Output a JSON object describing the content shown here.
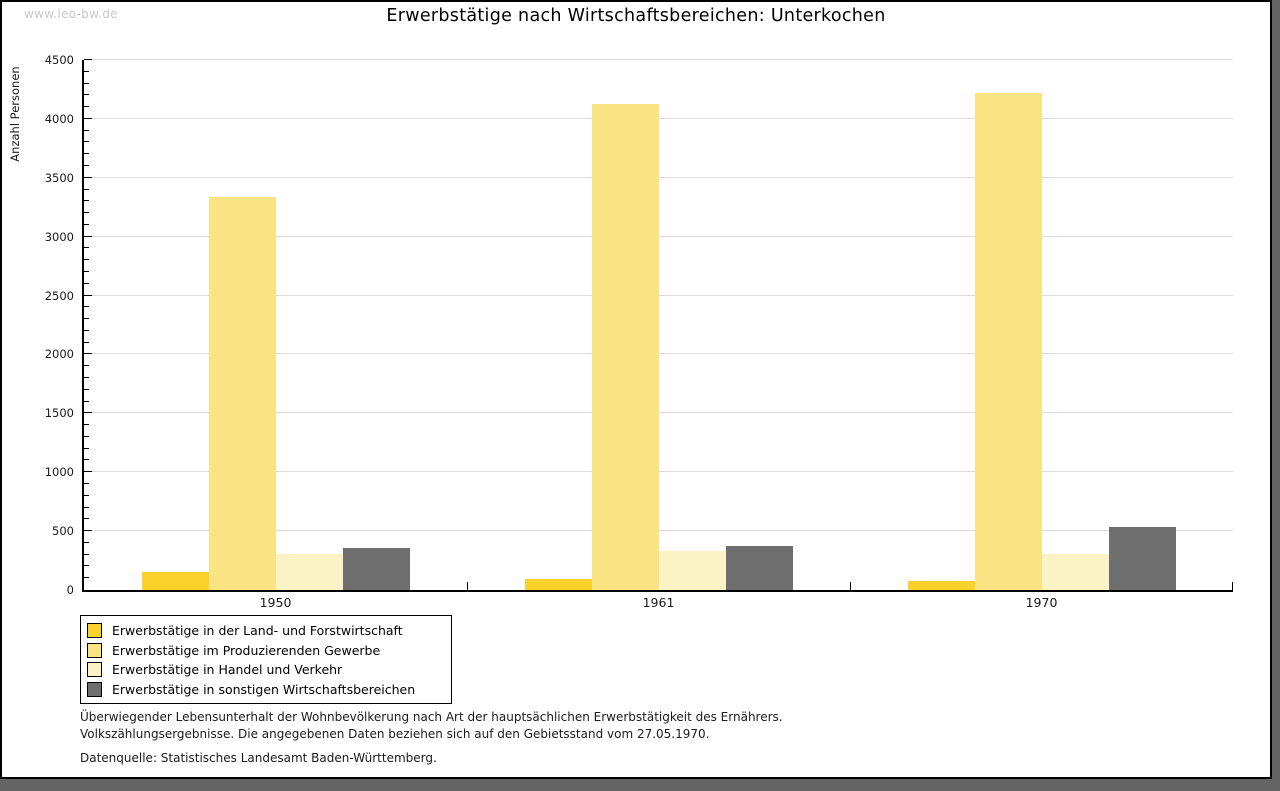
{
  "watermark": "www.leo-bw.de",
  "chart_data": {
    "type": "bar",
    "title": "Erwerbstätige nach Wirtschaftsbereichen: Unterkochen",
    "xlabel": "",
    "ylabel": "Anzahl Personen",
    "categories": [
      "1950",
      "1961",
      "1970"
    ],
    "series": [
      {
        "name": "Erwerbstätige in der Land- und Forstwirtschaft",
        "color": "#FBD22C",
        "values": [
          150,
          90,
          80
        ]
      },
      {
        "name": "Erwerbstätige im Produzierenden Gewerbe",
        "color": "#FAE382",
        "values": [
          3340,
          4130,
          4220
        ]
      },
      {
        "name": "Erwerbstätige in Handel und Verkehr",
        "color": "#FBF2C6",
        "values": [
          310,
          330,
          310
        ]
      },
      {
        "name": "Erwerbstätige in sonstigen Wirtschaftsbereichen",
        "color": "#6E6E6E",
        "values": [
          355,
          375,
          535
        ]
      }
    ],
    "ylim": [
      0,
      4500
    ],
    "ytick_major": 500,
    "ytick_minor": 100,
    "grid": true,
    "legend_position": "bottom-left",
    "axis_color": "#000000",
    "gridline_color": "#dcdcdc"
  },
  "footer": {
    "line1": "Überwiegender Lebensunterhalt der Wohnbevölkerung nach Art der hauptsächlichen Erwerbstätigkeit des Ernährers.",
    "line2": "Volkszählungsergebnisse. Die angegebenen Daten beziehen sich auf den Gebietsstand vom 27.05.1970.",
    "source": "Datenquelle: Statistisches Landesamt Baden-Württemberg."
  }
}
